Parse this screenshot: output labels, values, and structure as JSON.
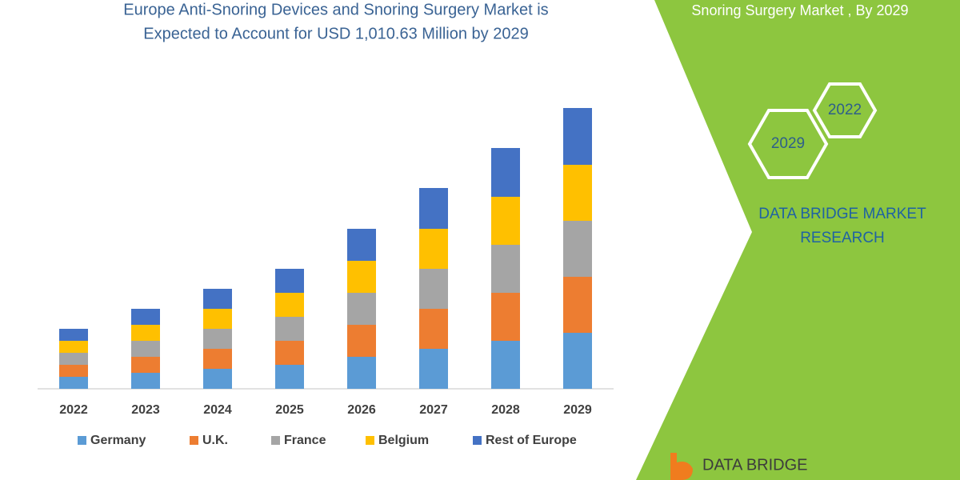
{
  "chart_data": {
    "type": "stacked-bar",
    "title": [
      "Europe Anti-Snoring Devices and Snoring Surgery Market is",
      "Expected to Account for USD 1,010.63 Million by 2029"
    ],
    "categories": [
      "2022",
      "2023",
      "2024",
      "2025",
      "2026",
      "2027",
      "2028",
      "2029"
    ],
    "series": [
      {
        "name": "Germany",
        "color": "#5b9bd5",
        "values": [
          15,
          20,
          25,
          30,
          40,
          50,
          60,
          70
        ]
      },
      {
        "name": "U.K.",
        "color": "#ed7d31",
        "values": [
          15,
          20,
          25,
          30,
          40,
          50,
          60,
          70
        ]
      },
      {
        "name": "France",
        "color": "#a5a5a5",
        "values": [
          15,
          20,
          25,
          30,
          40,
          50,
          60,
          70
        ]
      },
      {
        "name": "Belgium",
        "color": "#ffc000",
        "values": [
          15,
          20,
          25,
          30,
          40,
          50,
          60,
          70
        ]
      },
      {
        "name": "Rest of Europe",
        "color": "#4472c4",
        "values": [
          15,
          20,
          25,
          30,
          40,
          51,
          61,
          71
        ]
      }
    ],
    "legend": "bottom"
  },
  "panel": {
    "heading": "Snoring Surgery Market , By 2029",
    "hexagons": [
      "2022",
      "2029"
    ],
    "brand": [
      "DATA BRIDGE MARKET",
      "RESEARCH"
    ],
    "logo": "DATA BRIDGE"
  }
}
